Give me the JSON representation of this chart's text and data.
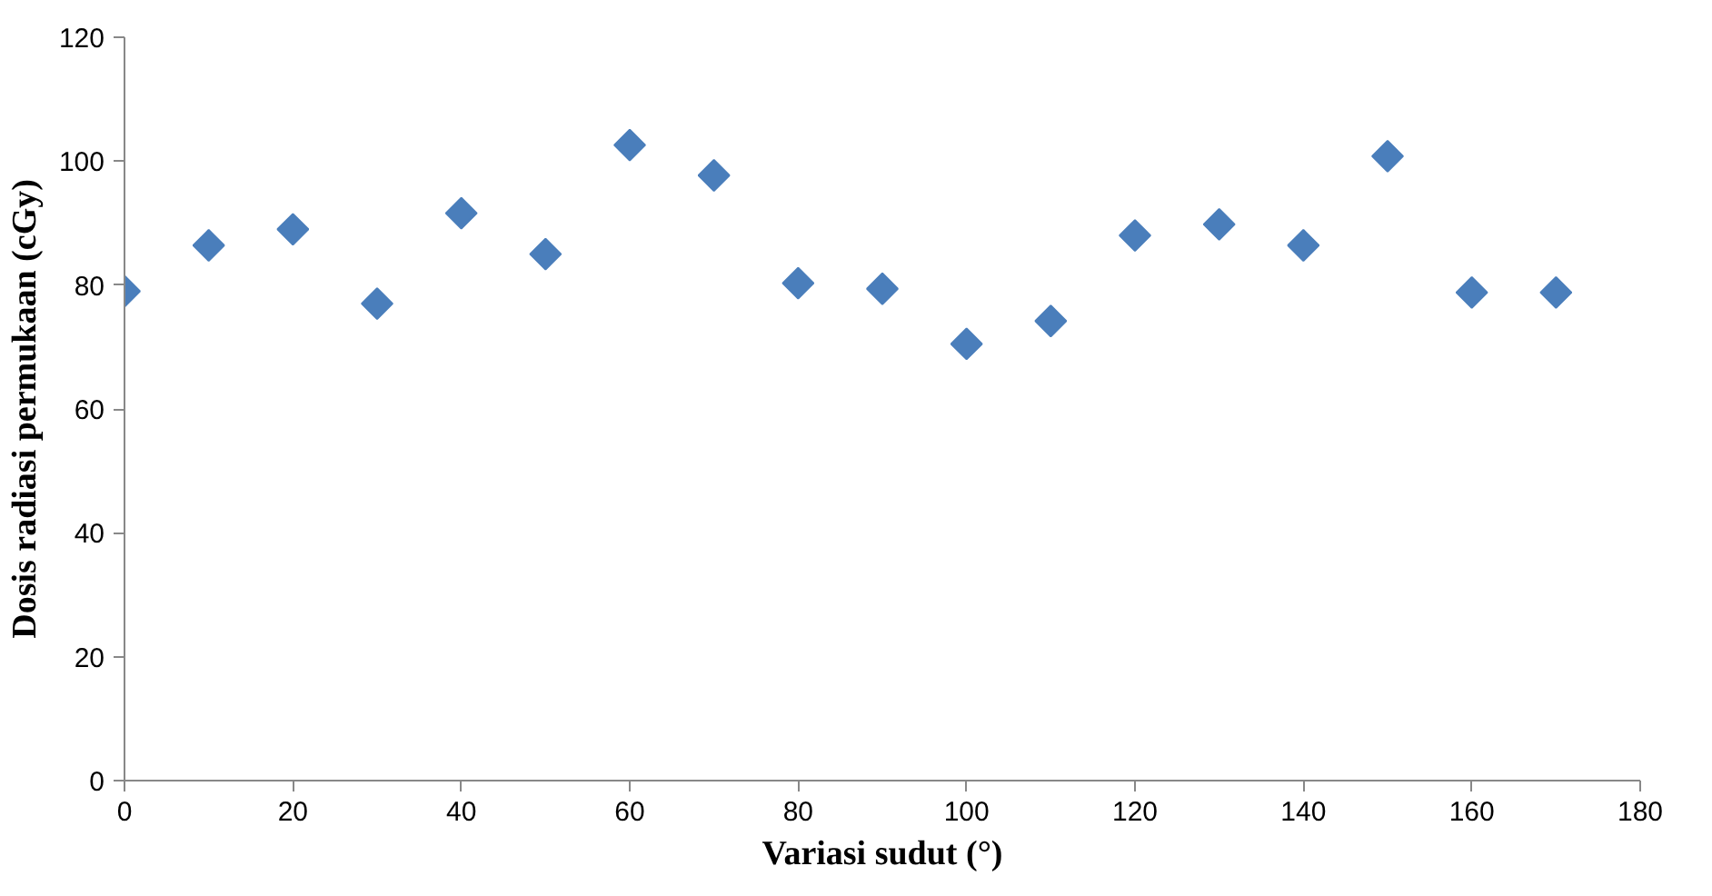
{
  "chart_data": {
    "type": "scatter",
    "xlabel": "Variasi sudut (°)",
    "ylabel": "Dosis radiasi permukaan (cGy)",
    "x": [
      0,
      10,
      20,
      30,
      40,
      50,
      60,
      70,
      80,
      90,
      100,
      110,
      120,
      130,
      140,
      150,
      160,
      170
    ],
    "series": [
      {
        "color": "#4a7ebb",
        "values": [
          79,
          86.4,
          89,
          77,
          91.6,
          85,
          102.6,
          97.7,
          80.3,
          79.4,
          70.5,
          74.2,
          88,
          89.8,
          86.4,
          100.8,
          78.8,
          78.8
        ]
      }
    ],
    "xlim": [
      0,
      180
    ],
    "xticks": [
      0,
      20,
      40,
      60,
      80,
      100,
      120,
      140,
      160,
      180
    ],
    "ylim": [
      0,
      120
    ],
    "yticks": [
      0,
      20,
      40,
      60,
      80,
      100,
      120
    ],
    "marker": "diamond",
    "grid": false
  }
}
